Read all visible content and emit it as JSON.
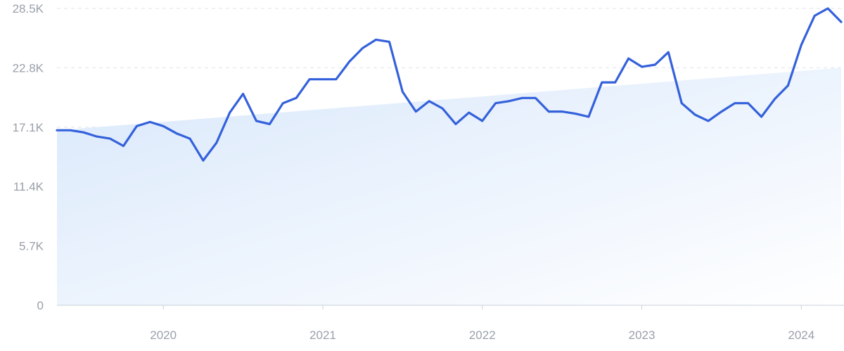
{
  "chart_data": {
    "type": "line",
    "title": "",
    "xlabel": "",
    "ylabel": "",
    "x_ticks": [
      "2020",
      "2021",
      "2022",
      "2023",
      "2024"
    ],
    "y_ticks": [
      "0",
      "5.7K",
      "11.4K",
      "17.1K",
      "22.8K",
      "28.5K"
    ],
    "ylim": [
      0,
      28500
    ],
    "grid": true,
    "colors": {
      "line": "#3461db",
      "area": "#dceafb",
      "grid": "#dfe3e8",
      "axis": "#c9d0da",
      "tick_text": "#9aa0aa"
    },
    "series": [
      {
        "values": [
          {
            "x": "2019-05",
            "y": 16800
          },
          {
            "x": "2019-06",
            "y": 16800
          },
          {
            "x": "2019-07",
            "y": 16600
          },
          {
            "x": "2019-08",
            "y": 16200
          },
          {
            "x": "2019-09",
            "y": 16000
          },
          {
            "x": "2019-10",
            "y": 15300
          },
          {
            "x": "2019-11",
            "y": 17200
          },
          {
            "x": "2019-12",
            "y": 17600
          },
          {
            "x": "2020-01",
            "y": 17200
          },
          {
            "x": "2020-02",
            "y": 16500
          },
          {
            "x": "2020-03",
            "y": 16000
          },
          {
            "x": "2020-04",
            "y": 13900
          },
          {
            "x": "2020-05",
            "y": 15600
          },
          {
            "x": "2020-06",
            "y": 18500
          },
          {
            "x": "2020-07",
            "y": 20300
          },
          {
            "x": "2020-08",
            "y": 17700
          },
          {
            "x": "2020-09",
            "y": 17400
          },
          {
            "x": "2020-10",
            "y": 19400
          },
          {
            "x": "2020-11",
            "y": 19900
          },
          {
            "x": "2020-12",
            "y": 21700
          },
          {
            "x": "2021-01",
            "y": 21700
          },
          {
            "x": "2021-02",
            "y": 21700
          },
          {
            "x": "2021-03",
            "y": 23400
          },
          {
            "x": "2021-04",
            "y": 24700
          },
          {
            "x": "2021-05",
            "y": 25500
          },
          {
            "x": "2021-06",
            "y": 25300
          },
          {
            "x": "2021-07",
            "y": 20500
          },
          {
            "x": "2021-08",
            "y": 18600
          },
          {
            "x": "2021-09",
            "y": 19600
          },
          {
            "x": "2021-10",
            "y": 18900
          },
          {
            "x": "2021-11",
            "y": 17400
          },
          {
            "x": "2021-12",
            "y": 18500
          },
          {
            "x": "2022-01",
            "y": 17700
          },
          {
            "x": "2022-02",
            "y": 19400
          },
          {
            "x": "2022-03",
            "y": 19600
          },
          {
            "x": "2022-04",
            "y": 19900
          },
          {
            "x": "2022-05",
            "y": 19900
          },
          {
            "x": "2022-06",
            "y": 18600
          },
          {
            "x": "2022-07",
            "y": 18600
          },
          {
            "x": "2022-08",
            "y": 18400
          },
          {
            "x": "2022-09",
            "y": 18100
          },
          {
            "x": "2022-10",
            "y": 21400
          },
          {
            "x": "2022-11",
            "y": 21400
          },
          {
            "x": "2022-12",
            "y": 23700
          },
          {
            "x": "2023-01",
            "y": 22900
          },
          {
            "x": "2023-02",
            "y": 23100
          },
          {
            "x": "2023-03",
            "y": 24300
          },
          {
            "x": "2023-04",
            "y": 19400
          },
          {
            "x": "2023-05",
            "y": 18300
          },
          {
            "x": "2023-06",
            "y": 17700
          },
          {
            "x": "2023-07",
            "y": 18600
          },
          {
            "x": "2023-08",
            "y": 19400
          },
          {
            "x": "2023-09",
            "y": 19400
          },
          {
            "x": "2023-10",
            "y": 18100
          },
          {
            "x": "2023-11",
            "y": 19800
          },
          {
            "x": "2023-12",
            "y": 21100
          },
          {
            "x": "2024-01",
            "y": 25000
          },
          {
            "x": "2024-02",
            "y": 27800
          },
          {
            "x": "2024-03",
            "y": 28500
          },
          {
            "x": "2024-04",
            "y": 27200
          }
        ]
      }
    ],
    "trend": {
      "start": 16800,
      "end": 22800
    }
  }
}
